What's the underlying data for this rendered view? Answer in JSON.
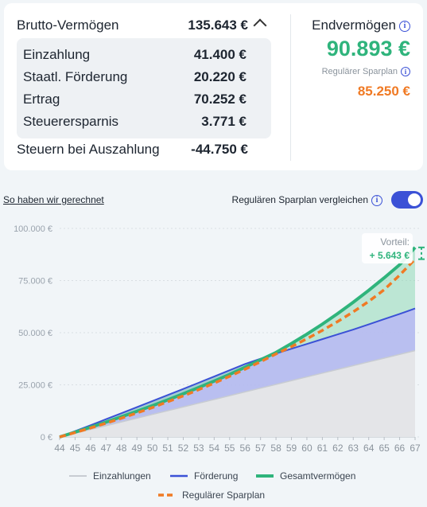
{
  "summary": {
    "brutto_label": "Brutto-Vermögen",
    "brutto_value": "135.643 €",
    "items": [
      {
        "label": "Einzahlung",
        "value": "41.400 €"
      },
      {
        "label": "Staatl. Förderung",
        "value": "20.220 €"
      },
      {
        "label": "Ertrag",
        "value": "70.252 €"
      },
      {
        "label": "Steuerersparnis",
        "value": "3.771 €"
      }
    ],
    "tax_label": "Steuern bei Auszahlung",
    "tax_value": "-44.750 €",
    "end_label": "Endvermögen",
    "end_value": "90.893 €",
    "regular_label": "Regulärer Sparplan",
    "regular_value": "85.250 €"
  },
  "controls": {
    "calc_link": "So haben wir gerechnet",
    "compare_label": "Regulären Sparplan vergleichen",
    "compare_on": true
  },
  "colors": {
    "green": "#2fb47c",
    "orange": "#f07a24",
    "blue": "#3b51d6",
    "grey": "#c8ccd2"
  },
  "chart_data": {
    "type": "area",
    "x": [
      44,
      45,
      46,
      47,
      48,
      49,
      50,
      51,
      52,
      53,
      54,
      55,
      56,
      57,
      58,
      59,
      60,
      61,
      62,
      63,
      64,
      65,
      66,
      67
    ],
    "ylim": [
      0,
      100000
    ],
    "yticks": [
      "0 €",
      "25.000 €",
      "50.000 €",
      "75.000 €",
      "100.000 €"
    ],
    "ytick_values": [
      0,
      25000,
      50000,
      75000,
      100000
    ],
    "series": [
      {
        "name": "Einzahlungen",
        "values": [
          0,
          1800,
          3600,
          5400,
          7200,
          9000,
          10800,
          12600,
          14400,
          16200,
          18000,
          19800,
          21600,
          23400,
          25200,
          27000,
          28800,
          30600,
          32400,
          34200,
          36000,
          37800,
          39600,
          41400
        ]
      },
      {
        "name": "Förderung",
        "values": [
          0,
          2800,
          5600,
          8500,
          11400,
          14300,
          17200,
          20100,
          23000,
          26000,
          29000,
          32000,
          35000,
          37500,
          40000,
          42300,
          44600,
          46900,
          49200,
          51500,
          54000,
          56500,
          59000,
          61600
        ]
      },
      {
        "name": "Gesamtvermögen",
        "values": [
          0,
          2300,
          4700,
          7100,
          9700,
          12300,
          15000,
          17800,
          20700,
          23700,
          26800,
          30000,
          33400,
          37000,
          40500,
          44800,
          49300,
          54100,
          59200,
          64600,
          70300,
          76300,
          82600,
          90893
        ]
      },
      {
        "name": "Regulärer Sparplan",
        "values": [
          0,
          2100,
          4300,
          6600,
          9000,
          11500,
          14100,
          16900,
          19700,
          22700,
          25800,
          29100,
          32500,
          36100,
          39800,
          43300,
          47100,
          51100,
          55400,
          60000,
          65000,
          70600,
          77600,
          85250
        ]
      }
    ],
    "annotation_label": "Vorteil:",
    "annotation_value": "+ 5.643 €"
  }
}
